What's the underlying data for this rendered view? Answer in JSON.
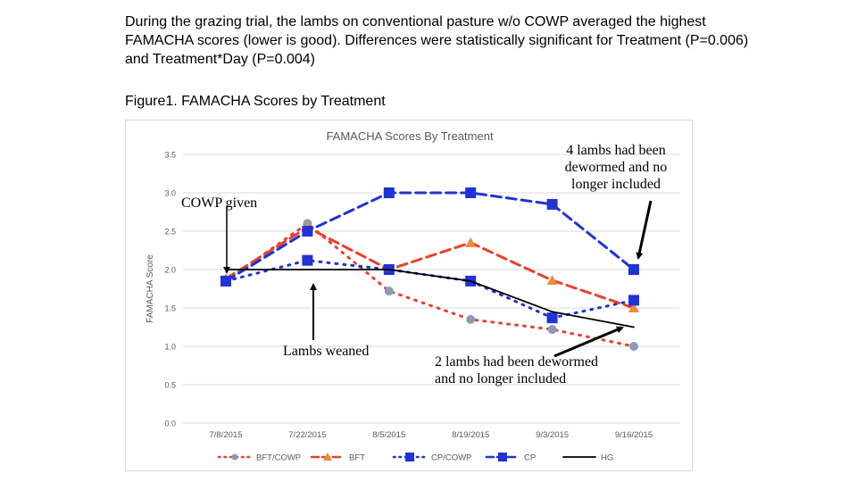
{
  "intro": "During the grazing trial, the lambs on conventional pasture w/o COWP averaged the highest FAMACHA scores (lower is good). Differences were statistically significant for Treatment (P=0.006) and Treatment*Day (P=0.004)",
  "figure_caption": "Figure1. FAMACHA Scores by Treatment",
  "annotations": {
    "cowp_given": "COWP given",
    "lambs_weaned": "Lambs weaned",
    "four_lambs": "4 lambs had been dewormed and no longer included",
    "two_lambs": "2 lambs had been dewormed and no longer included"
  },
  "chart_data": {
    "type": "line",
    "title": "FAMACHA Scores By Treatment",
    "xlabel": "",
    "ylabel": "FAMACHA Score",
    "categories": [
      "7/8/2015",
      "7/22/2015",
      "8/5/2015",
      "8/19/2015",
      "9/3/2015",
      "9/16/2015"
    ],
    "ylim": [
      0,
      3.5
    ],
    "yticks": [
      "0.0",
      "0.5",
      "1.0",
      "1.5",
      "2.0",
      "2.5",
      "3.0",
      "3.5"
    ],
    "grid": true,
    "legend_position": "bottom",
    "series": [
      {
        "name": "BFT/COWP",
        "values": [
          1.85,
          2.6,
          1.72,
          1.35,
          1.22,
          1.0
        ],
        "color": "#e8412b",
        "style": "dotted",
        "marker": "circle"
      },
      {
        "name": "BFT",
        "values": [
          1.88,
          2.55,
          2.0,
          2.35,
          1.86,
          1.5
        ],
        "color": "#e8412b",
        "style": "dashed",
        "marker": "triangle"
      },
      {
        "name": "CP/COWP",
        "values": [
          1.85,
          2.12,
          2.0,
          1.85,
          1.37,
          1.6
        ],
        "color": "#1f33d6",
        "style": "dotted",
        "marker": "square"
      },
      {
        "name": "CP",
        "values": [
          1.85,
          2.5,
          3.0,
          3.0,
          2.85,
          2.0
        ],
        "color": "#1f33d6",
        "style": "dashed",
        "marker": "square"
      },
      {
        "name": "HG",
        "values": [
          2.0,
          2.0,
          2.0,
          1.85,
          1.45,
          1.25
        ],
        "color": "#000000",
        "style": "solid",
        "marker": "none"
      }
    ]
  }
}
